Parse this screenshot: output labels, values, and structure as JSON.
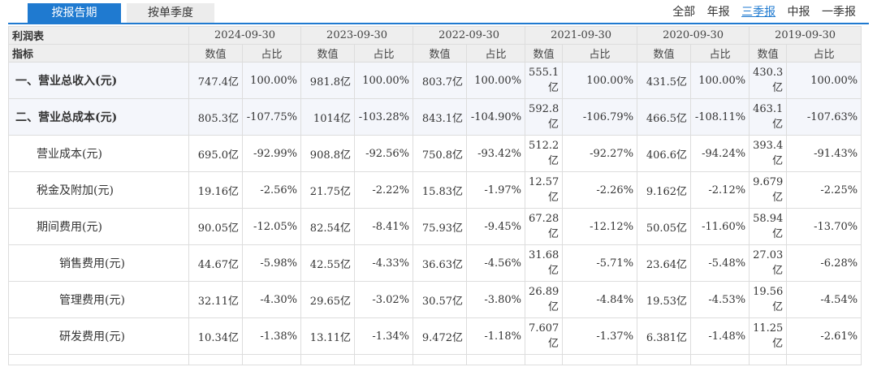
{
  "tabs": {
    "active": "按报告期",
    "inactive": "按单季度"
  },
  "filters": [
    "全部",
    "年报",
    "三季报",
    "中报",
    "一季报"
  ],
  "filter_selected": "三季报",
  "table": {
    "title": "利润表",
    "index_label": "指标",
    "value_label": "数值",
    "ratio_label": "占比",
    "periods": [
      "2024-09-30",
      "2023-09-30",
      "2022-09-30",
      "2021-09-30",
      "2020-09-30",
      "2019-09-30"
    ],
    "rows": [
      {
        "label": "一、营业总收入(元)",
        "level": 0,
        "bold": true,
        "cells": [
          "747.4亿",
          "100.00%",
          "981.8亿",
          "100.00%",
          "803.7亿",
          "100.00%",
          "555.1亿",
          "100.00%",
          "431.5亿",
          "100.00%",
          "430.3亿",
          "100.00%"
        ]
      },
      {
        "label": "二、营业总成本(元)",
        "level": 0,
        "bold": true,
        "cells": [
          "805.3亿",
          "-107.75%",
          "1014亿",
          "-103.28%",
          "843.1亿",
          "-104.90%",
          "592.8亿",
          "-106.79%",
          "466.5亿",
          "-108.11%",
          "463.1亿",
          "-107.63%"
        ]
      },
      {
        "label": "营业成本(元)",
        "level": 1,
        "bold": false,
        "cells": [
          "695.0亿",
          "-92.99%",
          "908.8亿",
          "-92.56%",
          "750.8亿",
          "-93.42%",
          "512.2亿",
          "-92.27%",
          "406.6亿",
          "-94.24%",
          "393.4亿",
          "-91.43%"
        ]
      },
      {
        "label": "税金及附加(元)",
        "level": 1,
        "bold": false,
        "cells": [
          "19.16亿",
          "-2.56%",
          "21.75亿",
          "-2.22%",
          "15.83亿",
          "-1.97%",
          "12.57亿",
          "-2.26%",
          "9.162亿",
          "-2.12%",
          "9.679亿",
          "-2.25%"
        ]
      },
      {
        "label": "期间费用(元)",
        "level": 1,
        "bold": false,
        "cells": [
          "90.05亿",
          "-12.05%",
          "82.54亿",
          "-8.41%",
          "75.93亿",
          "-9.45%",
          "67.28亿",
          "-12.12%",
          "50.05亿",
          "-11.60%",
          "58.94亿",
          "-13.70%"
        ]
      },
      {
        "label": "销售费用(元)",
        "level": 2,
        "bold": false,
        "cells": [
          "44.67亿",
          "-5.98%",
          "42.55亿",
          "-4.33%",
          "36.63亿",
          "-4.56%",
          "31.68亿",
          "-5.71%",
          "23.64亿",
          "-5.48%",
          "27.03亿",
          "-6.28%"
        ]
      },
      {
        "label": "管理费用(元)",
        "level": 2,
        "bold": false,
        "cells": [
          "32.11亿",
          "-4.30%",
          "29.65亿",
          "-3.02%",
          "30.57亿",
          "-3.80%",
          "26.89亿",
          "-4.84%",
          "19.53亿",
          "-4.53%",
          "19.56亿",
          "-4.54%"
        ]
      },
      {
        "label": "研发费用(元)",
        "level": 2,
        "bold": false,
        "cells": [
          "10.34亿",
          "-1.38%",
          "13.11亿",
          "-1.34%",
          "9.472亿",
          "-1.18%",
          "7.607亿",
          "-1.37%",
          "6.381亿",
          "-1.48%",
          "11.25亿",
          "-2.61%"
        ]
      }
    ]
  }
}
